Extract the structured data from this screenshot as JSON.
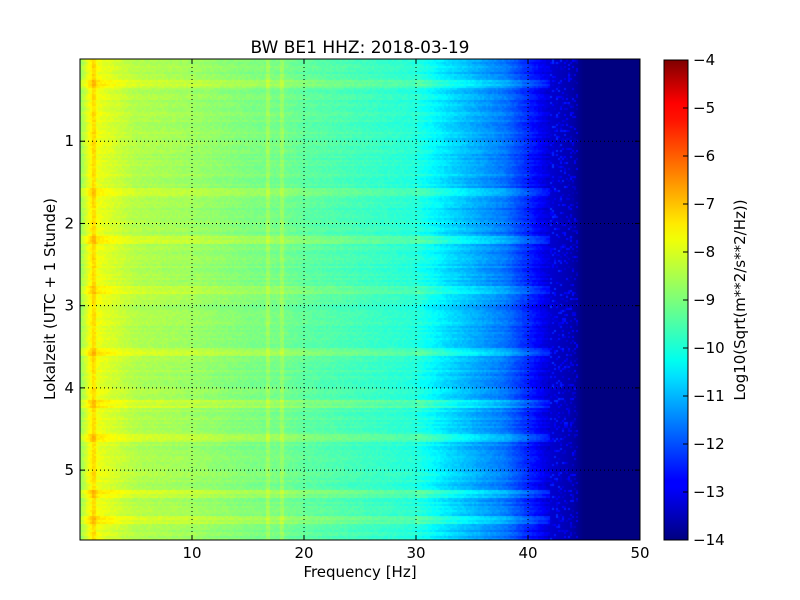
{
  "chart_data": {
    "type": "heatmap",
    "title": "BW BE1 HHZ: 2018-03-19",
    "xlabel": "Frequency [Hz]",
    "ylabel": "Lokalzeit (UTC + 1 Stunde)",
    "xlim": [
      0,
      50
    ],
    "ylim": [
      5.85,
      0
    ],
    "x_ticks": [
      10,
      20,
      30,
      40,
      50
    ],
    "x_tick_labels": [
      "10",
      "20",
      "30",
      "40",
      "50"
    ],
    "y_ticks": [
      1,
      2,
      3,
      4,
      5
    ],
    "y_tick_labels": [
      "1",
      "2",
      "3",
      "4",
      "5"
    ],
    "grid": true,
    "colormap": "jet",
    "colorbar": {
      "label": "Log10(Sqrt(m**2/s**2/Hz))",
      "range": [
        -14,
        -4
      ],
      "ticks": [
        -4,
        -5,
        -6,
        -7,
        -8,
        -9,
        -10,
        -11,
        -12,
        -13,
        -14
      ],
      "tick_labels": [
        "−4",
        "−5",
        "−6",
        "−7",
        "−8",
        "−9",
        "−10",
        "−11",
        "−12",
        "−13",
        "−14"
      ]
    },
    "frequency_profile_hz": [
      0,
      1,
      2,
      5,
      10,
      15,
      18,
      20,
      25,
      30,
      33,
      35,
      38,
      40,
      42,
      44,
      45,
      50
    ],
    "frequency_profile_value": [
      -8.8,
      -7.7,
      -8.0,
      -8.5,
      -8.7,
      -9.0,
      -9.1,
      -9.3,
      -9.6,
      -9.9,
      -10.6,
      -11.0,
      -11.6,
      -12.4,
      -13.2,
      -13.6,
      -14.0,
      -14.0
    ],
    "notable_lines_hz": [
      1.3,
      16.8,
      18.0
    ],
    "bright_time_bands_h": [
      0.3,
      1.6,
      2.2,
      2.8,
      3.55,
      4.2,
      4.6,
      5.3,
      5.6
    ]
  }
}
